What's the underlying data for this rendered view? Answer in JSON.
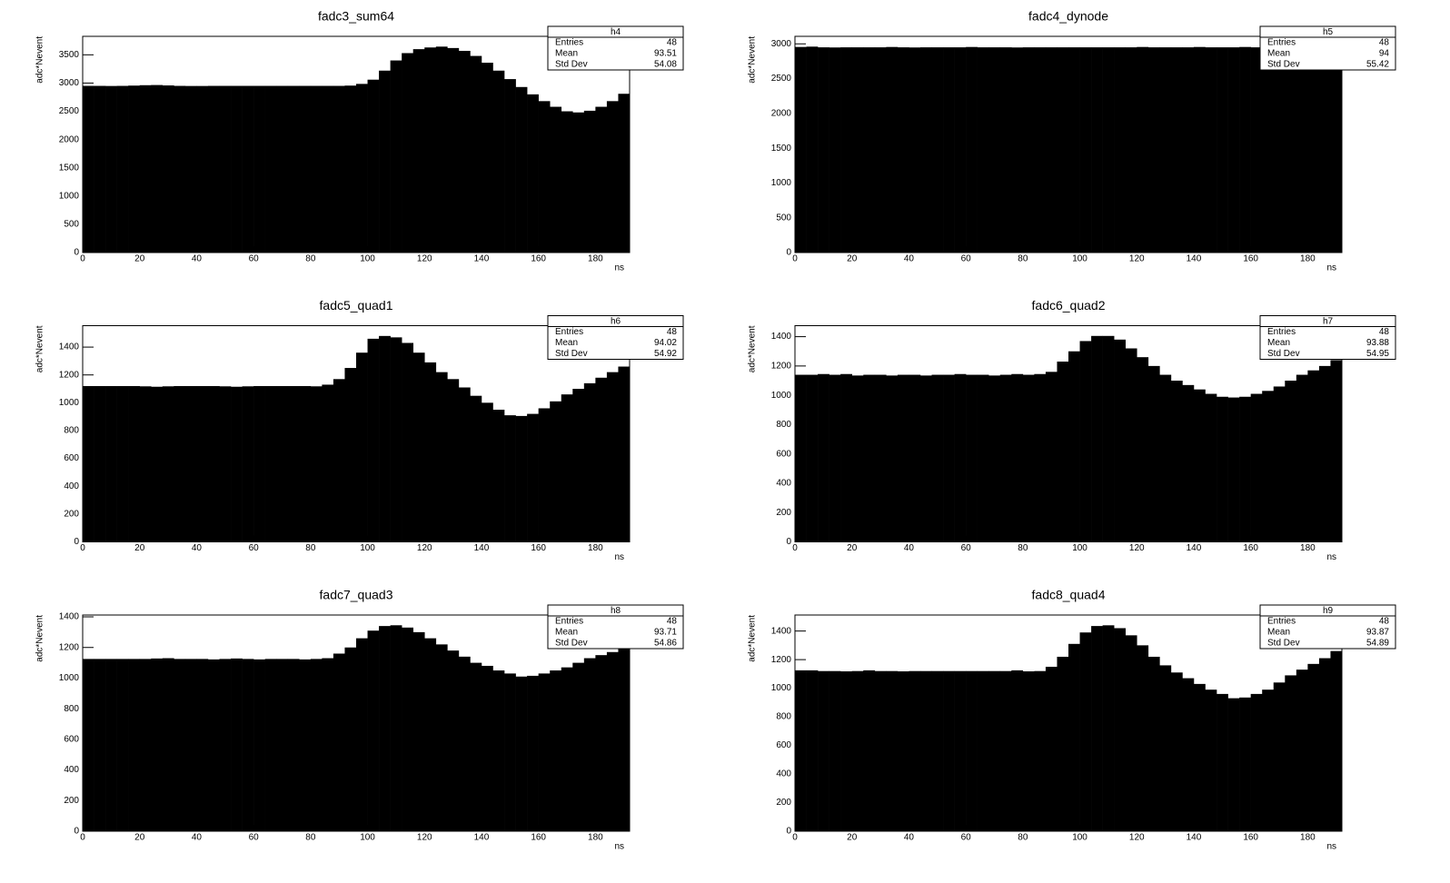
{
  "chart_data": [
    {
      "type": "histogram",
      "title": "fadc3_sum64",
      "xlabel": "ns",
      "ylabel": "adc*Nevent",
      "color": "#000000",
      "bins": [
        0,
        4,
        8,
        12,
        16,
        20,
        24,
        28,
        32,
        36,
        40,
        44,
        48,
        52,
        56,
        60,
        64,
        68,
        72,
        76,
        80,
        84,
        88,
        92,
        96,
        100,
        104,
        108,
        112,
        116,
        120,
        124,
        128,
        132,
        136,
        140,
        144,
        148,
        152,
        156,
        160,
        164,
        168,
        172,
        176,
        180,
        184,
        188,
        192
      ],
      "values": [
        2950,
        2950,
        2948,
        2950,
        2955,
        2962,
        2965,
        2958,
        2950,
        2948,
        2948,
        2950,
        2950,
        2950,
        2950,
        2950,
        2950,
        2950,
        2950,
        2950,
        2950,
        2950,
        2950,
        2955,
        2985,
        3060,
        3220,
        3400,
        3530,
        3600,
        3630,
        3645,
        3620,
        3570,
        3480,
        3360,
        3220,
        3070,
        2930,
        2800,
        2680,
        2580,
        2500,
        2480,
        2510,
        2580,
        2680,
        2810
      ],
      "xlim": [
        0,
        192
      ],
      "ylim": [
        0,
        3827
      ],
      "xticks": [
        0,
        20,
        40,
        60,
        80,
        100,
        120,
        140,
        160,
        180
      ],
      "yticks": [
        0,
        500,
        1000,
        1500,
        2000,
        2500,
        3000,
        3500
      ],
      "stats": {
        "title": "h4",
        "labels": [
          "Entries",
          "Mean",
          "Std Dev"
        ],
        "values": [
          48,
          93.51,
          54.08
        ]
      }
    },
    {
      "type": "histogram",
      "title": "fadc4_dynode",
      "xlabel": "ns",
      "ylabel": "adc*Nevent",
      "color": "#000000",
      "bins": [
        0,
        4,
        8,
        12,
        16,
        20,
        24,
        28,
        32,
        36,
        40,
        44,
        48,
        52,
        56,
        60,
        64,
        68,
        72,
        76,
        80,
        84,
        88,
        92,
        96,
        100,
        104,
        108,
        112,
        116,
        120,
        124,
        128,
        132,
        136,
        140,
        144,
        148,
        152,
        156,
        160,
        164,
        168,
        172,
        176,
        180,
        184,
        188,
        192
      ],
      "values": [
        2955,
        2960,
        2950,
        2948,
        2950,
        2950,
        2950,
        2950,
        2955,
        2950,
        2948,
        2950,
        2950,
        2950,
        2950,
        2955,
        2950,
        2950,
        2950,
        2948,
        2950,
        2950,
        2950,
        2950,
        2950,
        2950,
        2950,
        2950,
        2950,
        2950,
        2955,
        2950,
        2950,
        2950,
        2950,
        2955,
        2950,
        2950,
        2950,
        2955,
        2950,
        2950,
        2948,
        2950,
        2950,
        2950,
        2950,
        2945
      ],
      "xlim": [
        0,
        192
      ],
      "ylim": [
        0,
        3108
      ],
      "xticks": [
        0,
        20,
        40,
        60,
        80,
        100,
        120,
        140,
        160,
        180
      ],
      "yticks": [
        0,
        500,
        1000,
        1500,
        2000,
        2500,
        3000
      ],
      "stats": {
        "title": "h5",
        "labels": [
          "Entries",
          "Mean",
          "Std Dev"
        ],
        "values": [
          48,
          94,
          55.42
        ]
      }
    },
    {
      "type": "histogram",
      "title": "fadc5_quad1",
      "xlabel": "ns",
      "ylabel": "adc*Nevent",
      "color": "#000000",
      "bins": [
        0,
        4,
        8,
        12,
        16,
        20,
        24,
        28,
        32,
        36,
        40,
        44,
        48,
        52,
        56,
        60,
        64,
        68,
        72,
        76,
        80,
        84,
        88,
        92,
        96,
        100,
        104,
        108,
        112,
        116,
        120,
        124,
        128,
        132,
        136,
        140,
        144,
        148,
        152,
        156,
        160,
        164,
        168,
        172,
        176,
        180,
        184,
        188,
        192
      ],
      "values": [
        1120,
        1120,
        1120,
        1120,
        1120,
        1118,
        1115,
        1118,
        1120,
        1120,
        1120,
        1120,
        1118,
        1115,
        1118,
        1120,
        1120,
        1120,
        1120,
        1120,
        1118,
        1130,
        1170,
        1250,
        1360,
        1460,
        1480,
        1470,
        1430,
        1360,
        1290,
        1220,
        1170,
        1110,
        1050,
        1000,
        950,
        910,
        905,
        920,
        960,
        1010,
        1060,
        1100,
        1140,
        1180,
        1220,
        1260
      ],
      "xlim": [
        0,
        192
      ],
      "ylim": [
        0,
        1554
      ],
      "xticks": [
        0,
        20,
        40,
        60,
        80,
        100,
        120,
        140,
        160,
        180
      ],
      "yticks": [
        0,
        200,
        400,
        600,
        800,
        1000,
        1200,
        1400
      ],
      "stats": {
        "title": "h6",
        "labels": [
          "Entries",
          "Mean",
          "Std Dev"
        ],
        "values": [
          48,
          94.02,
          54.92
        ]
      }
    },
    {
      "type": "histogram",
      "title": "fadc6_quad2",
      "xlabel": "ns",
      "ylabel": "adc*Nevent",
      "color": "#000000",
      "bins": [
        0,
        4,
        8,
        12,
        16,
        20,
        24,
        28,
        32,
        36,
        40,
        44,
        48,
        52,
        56,
        60,
        64,
        68,
        72,
        76,
        80,
        84,
        88,
        92,
        96,
        100,
        104,
        108,
        112,
        116,
        120,
        124,
        128,
        132,
        136,
        140,
        144,
        148,
        152,
        156,
        160,
        164,
        168,
        172,
        176,
        180,
        184,
        188,
        192
      ],
      "values": [
        1140,
        1140,
        1145,
        1140,
        1145,
        1135,
        1140,
        1140,
        1135,
        1140,
        1140,
        1135,
        1140,
        1140,
        1145,
        1140,
        1140,
        1135,
        1140,
        1145,
        1140,
        1145,
        1160,
        1230,
        1300,
        1370,
        1405,
        1405,
        1380,
        1320,
        1260,
        1200,
        1140,
        1100,
        1070,
        1040,
        1010,
        990,
        985,
        990,
        1010,
        1030,
        1060,
        1100,
        1140,
        1170,
        1200,
        1240
      ],
      "xlim": [
        0,
        192
      ],
      "ylim": [
        0,
        1475
      ],
      "xticks": [
        0,
        20,
        40,
        60,
        80,
        100,
        120,
        140,
        160,
        180
      ],
      "yticks": [
        0,
        200,
        400,
        600,
        800,
        1000,
        1200,
        1400
      ],
      "stats": {
        "title": "h7",
        "labels": [
          "Entries",
          "Mean",
          "Std Dev"
        ],
        "values": [
          48,
          93.88,
          54.95
        ]
      }
    },
    {
      "type": "histogram",
      "title": "fadc7_quad3",
      "xlabel": "ns",
      "ylabel": "adc*Nevent",
      "color": "#000000",
      "bins": [
        0,
        4,
        8,
        12,
        16,
        20,
        24,
        28,
        32,
        36,
        40,
        44,
        48,
        52,
        56,
        60,
        64,
        68,
        72,
        76,
        80,
        84,
        88,
        92,
        96,
        100,
        104,
        108,
        112,
        116,
        120,
        124,
        128,
        132,
        136,
        140,
        144,
        148,
        152,
        156,
        160,
        164,
        168,
        172,
        176,
        180,
        184,
        188,
        192
      ],
      "values": [
        1125,
        1125,
        1125,
        1125,
        1125,
        1125,
        1128,
        1130,
        1125,
        1125,
        1125,
        1122,
        1125,
        1128,
        1125,
        1122,
        1125,
        1125,
        1125,
        1122,
        1125,
        1130,
        1160,
        1200,
        1260,
        1310,
        1340,
        1345,
        1330,
        1300,
        1260,
        1220,
        1180,
        1140,
        1100,
        1080,
        1050,
        1030,
        1010,
        1015,
        1030,
        1050,
        1070,
        1100,
        1130,
        1150,
        1170,
        1190
      ],
      "xlim": [
        0,
        192
      ],
      "ylim": [
        0,
        1412
      ],
      "xticks": [
        0,
        20,
        40,
        60,
        80,
        100,
        120,
        140,
        160,
        180
      ],
      "yticks": [
        0,
        200,
        400,
        600,
        800,
        1000,
        1200,
        1400
      ],
      "stats": {
        "title": "h8",
        "labels": [
          "Entries",
          "Mean",
          "Std Dev"
        ],
        "values": [
          48,
          93.71,
          54.86
        ]
      }
    },
    {
      "type": "histogram",
      "title": "fadc8_quad4",
      "xlabel": "ns",
      "ylabel": "adc*Nevent",
      "color": "#000000",
      "bins": [
        0,
        4,
        8,
        12,
        16,
        20,
        24,
        28,
        32,
        36,
        40,
        44,
        48,
        52,
        56,
        60,
        64,
        68,
        72,
        76,
        80,
        84,
        88,
        92,
        96,
        100,
        104,
        108,
        112,
        116,
        120,
        124,
        128,
        132,
        136,
        140,
        144,
        148,
        152,
        156,
        160,
        164,
        168,
        172,
        176,
        180,
        184,
        188,
        192
      ],
      "values": [
        1125,
        1125,
        1120,
        1120,
        1118,
        1120,
        1125,
        1120,
        1120,
        1118,
        1120,
        1120,
        1120,
        1120,
        1120,
        1120,
        1120,
        1120,
        1120,
        1125,
        1118,
        1120,
        1150,
        1220,
        1310,
        1390,
        1435,
        1440,
        1420,
        1370,
        1300,
        1220,
        1160,
        1110,
        1070,
        1030,
        990,
        960,
        930,
        935,
        960,
        990,
        1040,
        1090,
        1130,
        1170,
        1210,
        1260
      ],
      "xlim": [
        0,
        192
      ],
      "ylim": [
        0,
        1512
      ],
      "xticks": [
        0,
        20,
        40,
        60,
        80,
        100,
        120,
        140,
        160,
        180
      ],
      "yticks": [
        0,
        200,
        400,
        600,
        800,
        1000,
        1200,
        1400
      ],
      "stats": {
        "title": "h9",
        "labels": [
          "Entries",
          "Mean",
          "Std Dev"
        ],
        "values": [
          48,
          93.87,
          54.89
        ]
      }
    }
  ]
}
